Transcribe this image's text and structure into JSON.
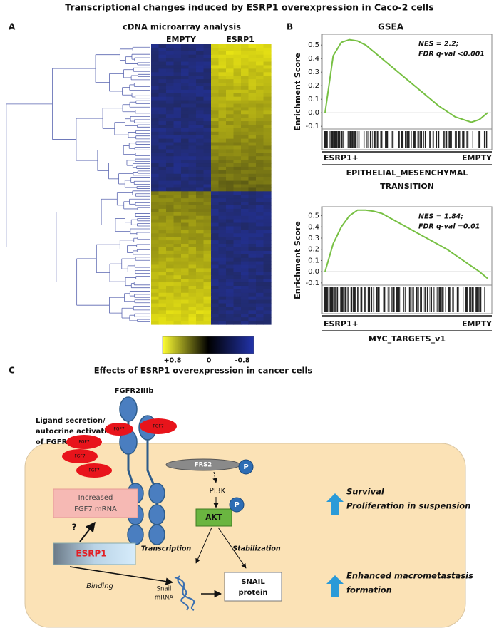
{
  "title": "Transcriptional changes induced by ESRP1 overexpression in Caco-2 cells",
  "panel_a": {
    "letter": "A",
    "title": "cDNA microarray analysis",
    "columns": [
      "EMPTY",
      "ESRP1"
    ],
    "colorbar_labels": [
      "+0.8",
      "0",
      "-0.8"
    ]
  },
  "panel_b": {
    "letter": "B",
    "title": "GSEA",
    "plots": [
      {
        "ylabel": "Enrichment Score",
        "annotation": [
          "NES = 2.2;",
          "FDR q-val <0.001"
        ],
        "left_label": "ESRP1+",
        "right_label": "EMPTY",
        "gene_set": [
          "EPITHELIAL_MESENCHYMAL",
          "TRANSITION"
        ],
        "ylim": [
          -0.12,
          0.58
        ],
        "yticks": [
          0.5,
          0.4,
          0.3,
          0.2,
          0.1,
          {
            "value": 0,
            "label": "0.0"
          },
          -0.1
        ],
        "color": "#77c043",
        "values": [
          0,
          0.42,
          0.52,
          0.54,
          0.53,
          0.5,
          0.45,
          0.4,
          0.35,
          0.3,
          0.25,
          0.2,
          0.15,
          0.1,
          0.05,
          0.01,
          -0.03,
          -0.05,
          -0.07,
          -0.05,
          0
        ]
      },
      {
        "ylabel": "Enrichment Score",
        "annotation": [
          "NES = 1.84;",
          "FDR q-val =0.01"
        ],
        "left_label": "ESRP1+",
        "right_label": "EMPTY",
        "gene_set": [
          "MYC_TARGETS_v1"
        ],
        "ylim": [
          -0.12,
          0.58
        ],
        "yticks": [
          0.5,
          0.4,
          0.3,
          0.2,
          0.1,
          {
            "value": 0,
            "label": "0.0"
          },
          -0.1
        ],
        "color": "#77c043",
        "values": [
          0,
          0.25,
          0.4,
          0.5,
          0.55,
          0.55,
          0.54,
          0.52,
          0.48,
          0.44,
          0.4,
          0.36,
          0.32,
          0.28,
          0.24,
          0.2,
          0.15,
          0.1,
          0.05,
          0,
          -0.06
        ]
      }
    ]
  },
  "panel_c": {
    "letter": "C",
    "title": "Effects of ESRP1 overexpression in cancer cells",
    "receptor": "FGFR2IIIb",
    "ligand_note": [
      "Ligand secretion/",
      "autocrine activation",
      "of FGFR2IIIb"
    ],
    "ligands": [
      "FGF7",
      "FGF7",
      "FGF7",
      "FGF7",
      "FGF7"
    ],
    "frs2": "FRS2",
    "phospho": [
      "P",
      "P"
    ],
    "pi3k": "PI3K",
    "akt": "AKT",
    "fgf7_mrna": [
      "Increased",
      "FGF7 mRNA"
    ],
    "question": "?",
    "esrp1": "ESRP1",
    "transcription": "Transcription",
    "stabilization": "Stabilization",
    "binding": "Binding",
    "snail_mrna": [
      "Snail",
      "mRNA"
    ],
    "snail_protein": [
      "SNAIL",
      "protein"
    ],
    "outcomes": [
      [
        "Survival",
        "Proliferation in suspension"
      ],
      [
        "Enhanced macrometastasis",
        "formation"
      ]
    ]
  }
}
